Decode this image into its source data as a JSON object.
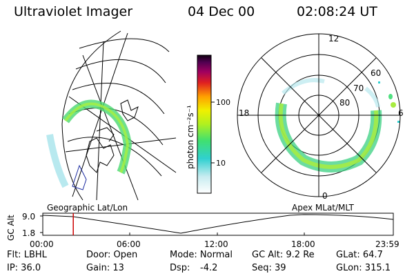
{
  "header": {
    "instrument": "Ultraviolet Imager",
    "date": "04 Dec 00",
    "time": "02:08:24 UT"
  },
  "colorbar": {
    "unit_label": "photon cm⁻²s⁻¹",
    "ticks": [
      "100",
      "10"
    ]
  },
  "polar_plot": {
    "mlat_labels": [
      "60",
      "70",
      "80"
    ],
    "mlt_labels": [
      "12",
      "18",
      "6",
      "0"
    ]
  },
  "timeline": {
    "left_label": "Geographic Lat/Lon",
    "right_label": "Apex MLat/MLT",
    "y_axis_label": "GC Alt",
    "y_max": "9.0",
    "y_min": "1.8",
    "time_ticks": [
      "00:00",
      "06:00",
      "12:00",
      "18:00",
      "23:59"
    ],
    "current_time_fraction": 0.087
  },
  "status": {
    "flt": "Flt: LBHL",
    "ip": "IP: 36.0",
    "door": "Door: Open",
    "gain": "Gain: 13",
    "mode": "Mode: Normal",
    "dsp_label": "Dsp:",
    "dsp_value": "-4.2",
    "gc_alt": "GC Alt: 9.2 Re",
    "seq": "Seq: 39",
    "glat": "GLat:  64.7",
    "glon": "GLon: 315.1"
  }
}
